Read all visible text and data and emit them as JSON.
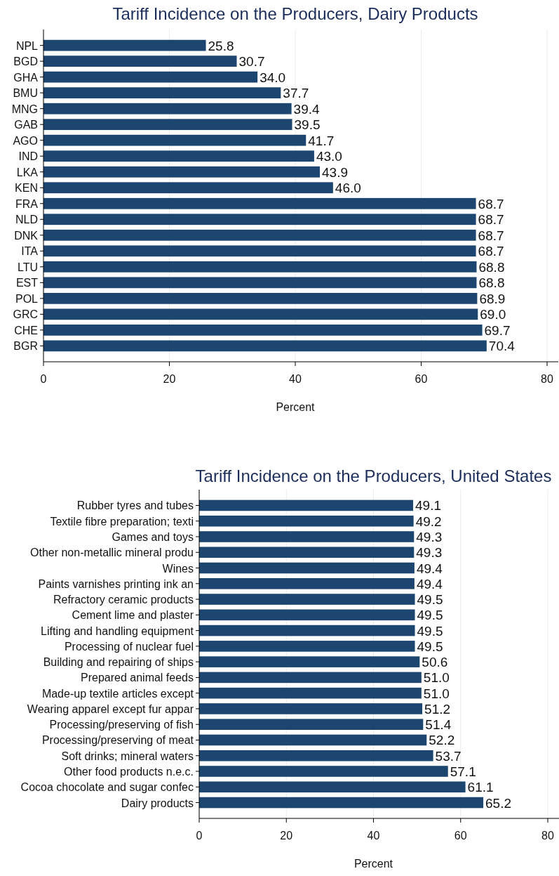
{
  "chart_data": [
    {
      "type": "bar",
      "orientation": "horizontal",
      "title": "Tariff Incidence on the Producers, Dairy Products",
      "xlabel": "Percent",
      "categories": [
        "NPL",
        "BGD",
        "GHA",
        "BMU",
        "MNG",
        "GAB",
        "AGO",
        "IND",
        "LKA",
        "KEN",
        "FRA",
        "NLD",
        "DNK",
        "ITA",
        "LTU",
        "EST",
        "POL",
        "GRC",
        "CHE",
        "BGR"
      ],
      "values": [
        25.8,
        30.7,
        34.0,
        37.7,
        39.4,
        39.5,
        41.7,
        43.0,
        43.9,
        46.0,
        68.7,
        68.7,
        68.7,
        68.7,
        68.8,
        68.8,
        68.9,
        69.0,
        69.7,
        70.4
      ],
      "value_labels": [
        "25.8",
        "30.7",
        "34.0",
        "37.7",
        "39.4",
        "39.5",
        "41.7",
        "43.0",
        "43.9",
        "46.0",
        "68.7",
        "68.7",
        "68.7",
        "68.7",
        "68.8",
        "68.8",
        "68.9",
        "69.0",
        "69.7",
        "70.4"
      ],
      "color": "#1c4670",
      "xlim": [
        0,
        80
      ],
      "xticks": [
        0,
        20,
        40,
        60,
        80
      ],
      "grid": "x"
    },
    {
      "type": "bar",
      "orientation": "horizontal",
      "title": "Tariff Incidence on the Producers, United States",
      "xlabel": "Percent",
      "categories": [
        "Rubber tyres and tubes",
        "Textile fibre preparation; texti",
        "Games and toys",
        "Other non-metallic mineral produ",
        "Wines",
        "Paints varnishes printing ink an",
        "Refractory ceramic products",
        "Cement lime and plaster",
        "Lifting and handling equipment",
        "Processing of nuclear fuel",
        "Building and repairing of ships",
        "Prepared animal feeds",
        "Made-up textile articles except",
        "Wearing apparel except fur appar",
        "Processing/preserving of fish",
        "Processing/preserving of meat",
        "Soft drinks; mineral waters",
        "Other food products n.e.c.",
        "Cocoa chocolate and sugar confec",
        "Dairy products"
      ],
      "values": [
        49.1,
        49.2,
        49.3,
        49.3,
        49.4,
        49.4,
        49.5,
        49.5,
        49.5,
        49.5,
        50.6,
        51.0,
        51.0,
        51.2,
        51.4,
        52.2,
        53.7,
        57.1,
        61.1,
        65.2
      ],
      "value_labels": [
        "49.1",
        "49.2",
        "49.3",
        "49.3",
        "49.4",
        "49.4",
        "49.5",
        "49.5",
        "49.5",
        "49.5",
        "50.6",
        "51.0",
        "51.0",
        "51.2",
        "51.4",
        "52.2",
        "53.7",
        "57.1",
        "61.1",
        "65.2"
      ],
      "color": "#1c4670",
      "xlim": [
        0,
        80
      ],
      "xticks": [
        0,
        20,
        40,
        60,
        80
      ],
      "grid": "x"
    }
  ]
}
